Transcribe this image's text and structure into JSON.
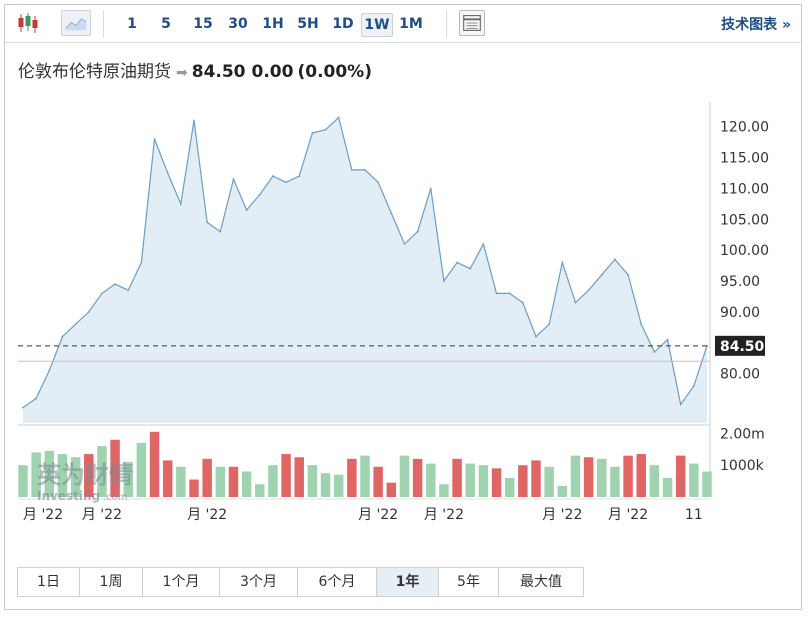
{
  "toolbar": {
    "chart_type_icons": [
      "candlestick-icon",
      "area-chart-icon"
    ],
    "timeframes": [
      "1",
      "5",
      "15",
      "30",
      "1H",
      "5H",
      "1D",
      "1W",
      "1M"
    ],
    "active_timeframe": "1W",
    "table_icon": "table-icon",
    "tech_link_label": "技术图表",
    "tech_link_arrow": "»"
  },
  "header": {
    "instrument": "伦敦布伦特原油期货",
    "arrow": "➡",
    "price": "84.50",
    "change": "0.00",
    "change_pct": "(0.00%)"
  },
  "watermark": {
    "cn": "英为财情",
    "en": "Investing",
    "domain": ".com"
  },
  "chart_data": {
    "type": "area",
    "price_series": [
      74.5,
      76.0,
      80.5,
      86.0,
      88.0,
      90.0,
      93.0,
      94.5,
      93.5,
      98.0,
      118.0,
      112.5,
      107.5,
      121.0,
      104.5,
      103.0,
      111.5,
      106.5,
      109.0,
      112.0,
      111.0,
      112.0,
      119.0,
      119.5,
      121.5,
      113.0,
      113.0,
      111.0,
      106.0,
      101.0,
      103.0,
      110.0,
      95.0,
      98.0,
      97.0,
      101.0,
      93.0,
      93.0,
      91.5,
      86.0,
      88.0,
      98.0,
      91.5,
      93.5,
      96.0,
      98.5,
      96.0,
      88.0,
      83.5,
      85.5,
      75.0,
      78.0,
      84.5
    ],
    "last_price": 84.5,
    "last_price_label": "84.50",
    "ylim": [
      72,
      124
    ],
    "y_ticks": [
      80,
      85,
      90,
      95,
      100,
      105,
      110,
      115,
      120
    ],
    "y_tick_labels": [
      "80.00",
      "",
      "90.00",
      "95.00",
      "100.00",
      "105.00",
      "110.00",
      "115.00",
      "120.00"
    ],
    "red_reference_line": 82.0,
    "volume": {
      "values": [
        1000,
        1400,
        1450,
        1350,
        1250,
        1350,
        1600,
        1800,
        1100,
        1700,
        2050,
        1150,
        950,
        550,
        1200,
        950,
        950,
        800,
        400,
        1000,
        1350,
        1250,
        1000,
        750,
        700,
        1200,
        1300,
        950,
        450,
        1300,
        1200,
        1050,
        400,
        1200,
        1050,
        1000,
        900,
        600,
        1000,
        1150,
        950,
        350,
        1300,
        1250,
        1200,
        950,
        1300,
        1350,
        1000,
        600,
        1300,
        1050,
        800
      ],
      "up": [
        1,
        1,
        1,
        1,
        1,
        0,
        1,
        0,
        1,
        1,
        0,
        0,
        1,
        0,
        0,
        1,
        0,
        1,
        1,
        1,
        0,
        0,
        1,
        1,
        1,
        0,
        1,
        0,
        0,
        1,
        0,
        1,
        1,
        0,
        1,
        1,
        0,
        1,
        0,
        0,
        1,
        1,
        1,
        0,
        1,
        1,
        0,
        0,
        1,
        1,
        0,
        1,
        1
      ],
      "ylim": [
        0,
        2200
      ],
      "y_tick_labels": [
        "2.00m",
        "1000k"
      ],
      "y_ticks": [
        2000,
        1000
      ]
    },
    "x_labels": [
      "月 '22",
      "月 '22",
      "月 '22",
      "月 '22",
      "月 '22",
      "月 '22",
      "月 '22",
      "11"
    ],
    "x_label_index": [
      0,
      6,
      14,
      27,
      32,
      41,
      46,
      51
    ],
    "colors": {
      "line": "#6a9ec6",
      "fill": "#e3edf6",
      "up": "#9fd3b0",
      "down": "#e06666",
      "dashed": "#333333",
      "ref": "#e8b3b3"
    }
  },
  "range_buttons": [
    "1日",
    "1周",
    "1个月",
    "3个月",
    "6个月",
    "1年",
    "5年",
    "最大值"
  ],
  "range_selected": "1年"
}
